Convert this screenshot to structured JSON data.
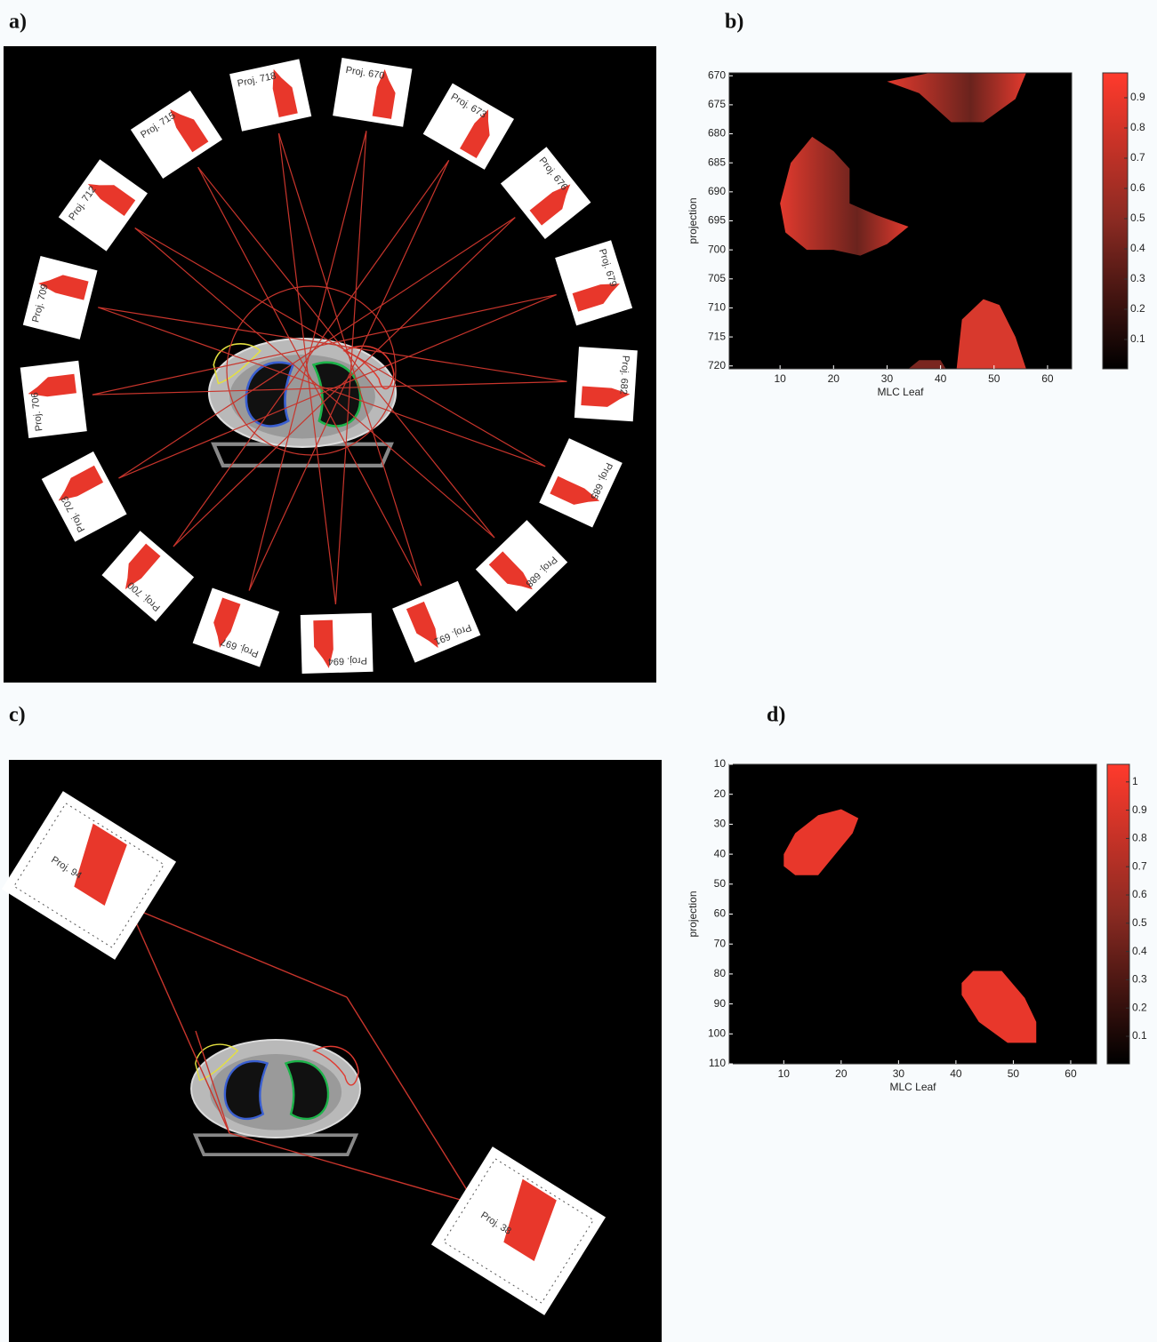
{
  "panels": [
    {
      "label": "a)",
      "projections": [
        "Proj. 670",
        "Proj. 673",
        "Proj. 676",
        "Proj. 679",
        "Proj. 682",
        "Proj. 685",
        "Proj. 688",
        "Proj. 691",
        "Proj. 694",
        "Proj. 697",
        "Proj. 700",
        "Proj. 703",
        "Proj. 706",
        "Proj. 709",
        "Proj. 712",
        "Proj. 715",
        "Proj. 718"
      ]
    },
    {
      "label": "b)",
      "y_axis_label": "projection",
      "x_axis_label": "MLC Leaf",
      "y_ticks": [
        "670",
        "675",
        "680",
        "685",
        "690",
        "695",
        "700",
        "705",
        "710",
        "715",
        "720"
      ],
      "x_ticks": [
        "10",
        "20",
        "30",
        "40",
        "50",
        "60"
      ],
      "colorbar_ticks": [
        "0.1",
        "0.2",
        "0.3",
        "0.4",
        "0.5",
        "0.6",
        "0.7",
        "0.8",
        "0.9"
      ]
    },
    {
      "label": "c)",
      "projections": [
        "Proj. 94",
        "Proj. 38"
      ]
    },
    {
      "label": "d)",
      "y_axis_label": "projection",
      "x_axis_label": "MLC Leaf",
      "y_ticks": [
        "10",
        "20",
        "30",
        "40",
        "50",
        "60",
        "70",
        "80",
        "90",
        "100",
        "110"
      ],
      "x_ticks": [
        "10",
        "20",
        "30",
        "40",
        "50",
        "60"
      ],
      "colorbar_ticks": [
        "0.1",
        "0.2",
        "0.3",
        "0.4",
        "0.5",
        "0.6",
        "0.7",
        "0.8",
        "0.9",
        "1"
      ]
    }
  ]
}
